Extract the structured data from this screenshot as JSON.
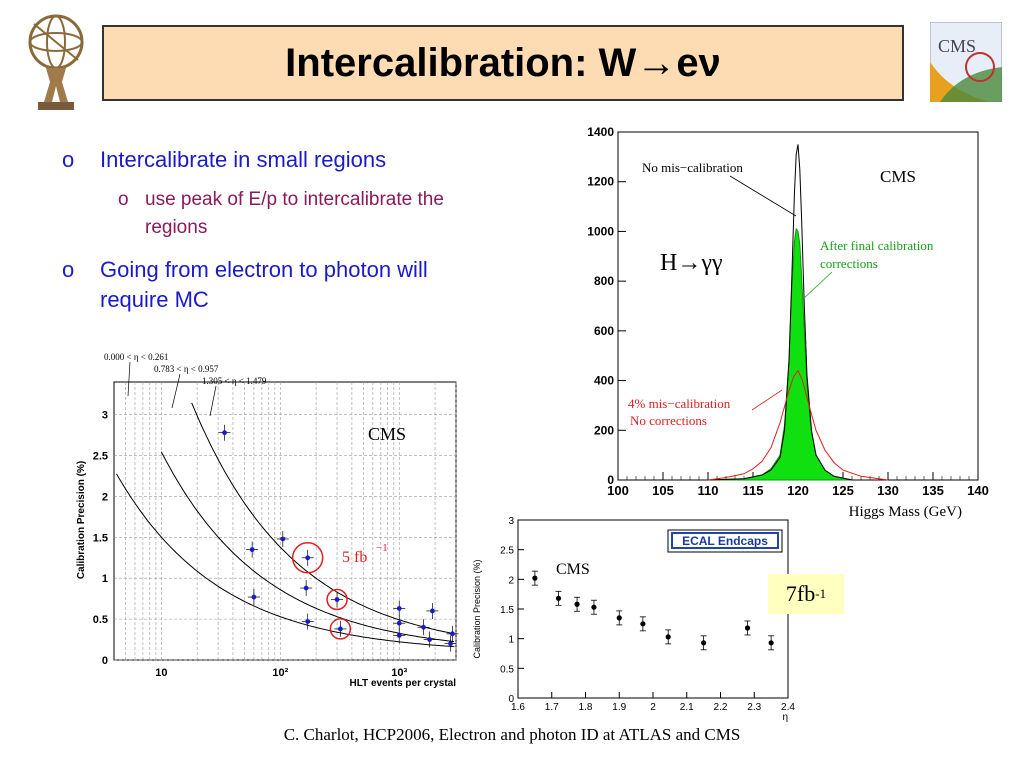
{
  "slide": {
    "title_prefix": "Intercalibration: W",
    "title_arrow": "→",
    "title_suffix": "eν",
    "footer": "C. Charlot, HCP2006, Electron and photon ID at ATLAS and CMS",
    "logo_right_text": "CMS",
    "bullets": [
      {
        "marker": "o",
        "text": "Intercalibrate in small regions"
      },
      {
        "marker": "o",
        "text": "use peak of E/p to intercalibrate the regions",
        "line1": "use peak of E/p to intercalibrate the",
        "line2": "regions"
      },
      {
        "marker": "o",
        "text": "Going from electron to photon will require MC",
        "line1": "Going from electron to photon will",
        "line2": "require MC"
      }
    ],
    "lumi_box": {
      "base": "7fb",
      "sup": "-1"
    },
    "colors": {
      "title_bg": "#fddcb4",
      "bullet_primary": "#1a1acc",
      "bullet_secondary": "#8a1a5a",
      "lumi_bg": "#ffffc0"
    }
  },
  "chart_data": [
    {
      "type": "line",
      "title": "",
      "xlabel": "Higgs Mass (GeV)",
      "ylabel": "",
      "xlim": [
        100,
        140
      ],
      "ylim": [
        0,
        1400
      ],
      "x_ticks": [
        100,
        105,
        110,
        115,
        120,
        125,
        130,
        135,
        140
      ],
      "y_ticks": [
        0,
        200,
        400,
        600,
        800,
        1000,
        1200,
        1400
      ],
      "annotations": {
        "no_miscal": "No mis−calibration",
        "cms": "CMS",
        "after_line1": "After final calibration",
        "after_line2": "corrections",
        "process": "H→γγ",
        "miscal_line1": "4% mis−calibration",
        "miscal_line2": "No corrections"
      },
      "series": [
        {
          "name": "No mis−calibration",
          "x": [
            110,
            114,
            116,
            117,
            118,
            118.5,
            119,
            119.3,
            119.6,
            119.8,
            120,
            120.2,
            120.4,
            120.7,
            121,
            121.5,
            122,
            123,
            124,
            126
          ],
          "values": [
            0,
            5,
            20,
            40,
            90,
            200,
            480,
            800,
            1150,
            1310,
            1350,
            1250,
            1050,
            700,
            420,
            200,
            100,
            40,
            15,
            0
          ]
        },
        {
          "name": "After final calibration corrections",
          "x": [
            110,
            114,
            116,
            117,
            118,
            118.5,
            119,
            119.3,
            119.6,
            119.8,
            120,
            120.2,
            120.4,
            120.7,
            121,
            121.5,
            122,
            123,
            124,
            126
          ],
          "values": [
            0,
            5,
            20,
            45,
            100,
            220,
            480,
            760,
            960,
            1010,
            1000,
            950,
            820,
            600,
            380,
            190,
            100,
            40,
            15,
            0
          ]
        },
        {
          "name": "4% mis−calibration No corrections",
          "x": [
            110,
            112,
            114,
            115,
            116,
            117,
            118,
            119,
            119.5,
            120,
            120.5,
            121,
            122,
            123,
            124,
            125,
            127,
            130
          ],
          "values": [
            0,
            10,
            25,
            45,
            75,
            130,
            230,
            360,
            415,
            440,
            400,
            330,
            200,
            120,
            70,
            40,
            15,
            0
          ]
        }
      ]
    },
    {
      "type": "scatter",
      "title": "",
      "xlabel": "HLT events per crystal",
      "ylabel": "Calibration Precision (%)",
      "log_x": true,
      "xlim": [
        4,
        3000
      ],
      "ylim": [
        0,
        3.4
      ],
      "x_tick_labels": [
        "10",
        "10²",
        "10³"
      ],
      "y_ticks": [
        0,
        0.5,
        1,
        1.5,
        2,
        2.5,
        3
      ],
      "annotations": {
        "cms": "CMS",
        "lumi": "5 fb",
        "lumi_sup": "−1",
        "eta1": "0.000 <  η  < 0.261",
        "eta2": "0.783 <    η   < 0.957",
        "eta3": "1.305 <   η   < 1.479"
      },
      "series": [
        {
          "name": "0.000 < η < 0.261",
          "x": [
            60,
            170,
            320,
            1000,
            1800,
            2700
          ],
          "values": [
            0.77,
            0.47,
            0.38,
            0.3,
            0.25,
            0.2
          ]
        },
        {
          "name": "0.783 < η < 0.957",
          "x": [
            58,
            165,
            300,
            1000,
            1600,
            2800
          ],
          "values": [
            1.35,
            0.88,
            0.74,
            0.45,
            0.4,
            0.32
          ]
        },
        {
          "name": "1.305 < η < 1.479",
          "x": [
            34,
            105,
            170,
            1000,
            1900
          ],
          "values": [
            2.78,
            1.48,
            1.25,
            0.63,
            0.6
          ]
        }
      ]
    },
    {
      "type": "scatter",
      "title": "",
      "xlabel": "η",
      "ylabel": "Calibration Precision (%)",
      "xlim": [
        1.6,
        2.4
      ],
      "ylim": [
        0,
        3
      ],
      "x_ticks": [
        1.6,
        1.7,
        1.8,
        1.9,
        2,
        2.1,
        2.2,
        2.3,
        2.4
      ],
      "y_ticks": [
        0,
        0.5,
        1,
        1.5,
        2,
        2.5,
        3
      ],
      "annotations": {
        "cms": "CMS",
        "legend_box": "ECAL Endcaps"
      },
      "series": [
        {
          "name": "",
          "x": [
            1.65,
            1.72,
            1.775,
            1.825,
            1.9,
            1.97,
            2.045,
            2.15,
            2.28,
            2.35
          ],
          "values": [
            2.02,
            1.68,
            1.58,
            1.53,
            1.35,
            1.25,
            1.03,
            0.93,
            1.18,
            0.93
          ]
        }
      ]
    }
  ]
}
